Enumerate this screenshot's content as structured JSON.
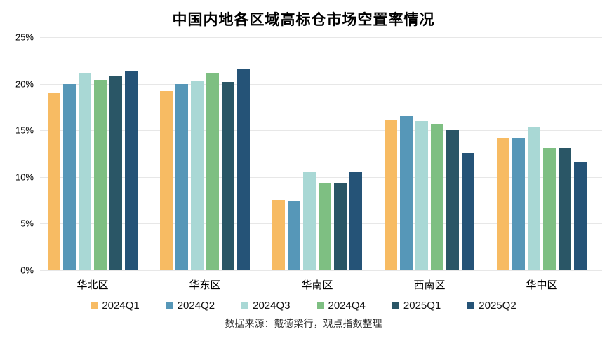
{
  "title": "中国内地各区域高标仓市场空置率情况",
  "source_note": "数据来源：戴德梁行，观点指数整理",
  "colors": {
    "grid": "#e7e7e7",
    "text": "#000000"
  },
  "chart_data": {
    "type": "bar",
    "title": "中国内地各区域高标仓市场空置率情况",
    "categories": [
      "华北区",
      "华东区",
      "华南区",
      "西南区",
      "华中区"
    ],
    "series": [
      {
        "name": "2024Q1",
        "color": "#F7BB63",
        "values": [
          19.0,
          19.2,
          7.5,
          16.1,
          14.2
        ]
      },
      {
        "name": "2024Q2",
        "color": "#5697B8",
        "values": [
          20.0,
          20.0,
          7.4,
          16.6,
          14.2
        ]
      },
      {
        "name": "2024Q3",
        "color": "#A9D8D5",
        "values": [
          21.2,
          20.3,
          10.5,
          16.0,
          15.4
        ]
      },
      {
        "name": "2024Q4",
        "color": "#7EBF82",
        "values": [
          20.4,
          21.2,
          9.3,
          15.7,
          13.1
        ]
      },
      {
        "name": "2025Q1",
        "color": "#2A5666",
        "values": [
          20.9,
          20.2,
          9.3,
          15.0,
          13.1
        ]
      },
      {
        "name": "2025Q2",
        "color": "#255377",
        "values": [
          21.4,
          21.6,
          10.5,
          12.6,
          11.6
        ]
      }
    ],
    "xlabel": "",
    "ylabel": "",
    "ylim": [
      0,
      25
    ],
    "y_tick_labels": [
      "25%",
      "20%",
      "15%",
      "10%",
      "5%",
      "0%"
    ],
    "y_tick_values": [
      25,
      20,
      15,
      10,
      5,
      0
    ],
    "grid": true,
    "legend_position": "bottom"
  }
}
